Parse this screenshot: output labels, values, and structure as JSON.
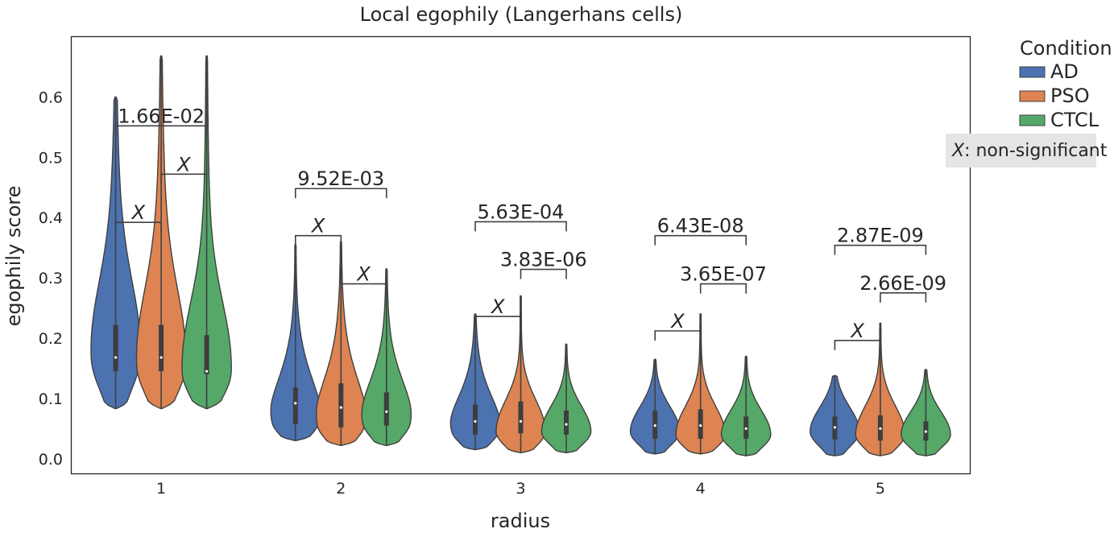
{
  "chart_data": {
    "type": "violin",
    "title": "Local egophily (Langerhans cells)",
    "xlabel": "radius",
    "ylabel": "egophily score",
    "categories": [
      "1",
      "2",
      "3",
      "4",
      "5"
    ],
    "ylim": [
      -0.025,
      0.7
    ],
    "yticks": [
      "0.0",
      "0.1",
      "0.2",
      "0.3",
      "0.4",
      "0.5",
      "0.6"
    ],
    "grid": false,
    "legend": {
      "title": "Condition",
      "placement": "outside-top-right",
      "entries": [
        {
          "name": "AD",
          "color": "#4c72b0"
        },
        {
          "name": "PSO",
          "color": "#dd8452"
        },
        {
          "name": "CTCL",
          "color": "#55a868"
        }
      ]
    },
    "note": {
      "symbol": "X",
      "text": ": non-significant"
    },
    "series": [
      {
        "name": "AD",
        "color": "#4c72b0",
        "violins": [
          {
            "min": 0.083,
            "max": 0.6,
            "q1": 0.145,
            "median": 0.168,
            "q3": 0.222,
            "modes": [
              [
                0.168,
                1.0
              ],
              [
                0.285,
                0.22
              ]
            ]
          },
          {
            "min": 0.03,
            "max": 0.355,
            "q1": 0.057,
            "median": 0.092,
            "q3": 0.118,
            "modes": [
              [
                0.06,
                1.0
              ],
              [
                0.1,
                0.6
              ]
            ]
          },
          {
            "min": 0.015,
            "max": 0.24,
            "q1": 0.04,
            "median": 0.062,
            "q3": 0.09,
            "modes": [
              [
                0.045,
                1.0
              ],
              [
                0.075,
                0.65
              ]
            ]
          },
          {
            "min": 0.008,
            "max": 0.165,
            "q1": 0.033,
            "median": 0.055,
            "q3": 0.08,
            "modes": [
              [
                0.045,
                1.0
              ]
            ]
          },
          {
            "min": 0.005,
            "max": 0.138,
            "q1": 0.032,
            "median": 0.052,
            "q3": 0.07,
            "modes": [
              [
                0.045,
                1.0
              ]
            ]
          }
        ]
      },
      {
        "name": "PSO",
        "color": "#dd8452",
        "violins": [
          {
            "min": 0.083,
            "max": 0.668,
            "q1": 0.145,
            "median": 0.168,
            "q3": 0.222,
            "modes": [
              [
                0.155,
                1.0
              ],
              [
                0.28,
                0.2
              ]
            ]
          },
          {
            "min": 0.022,
            "max": 0.36,
            "q1": 0.052,
            "median": 0.085,
            "q3": 0.125,
            "modes": [
              [
                0.055,
                1.0
              ],
              [
                0.1,
                0.55
              ]
            ]
          },
          {
            "min": 0.01,
            "max": 0.27,
            "q1": 0.042,
            "median": 0.062,
            "q3": 0.095,
            "modes": [
              [
                0.045,
                1.0
              ]
            ]
          },
          {
            "min": 0.008,
            "max": 0.24,
            "q1": 0.033,
            "median": 0.055,
            "q3": 0.082,
            "modes": [
              [
                0.04,
                1.0
              ]
            ]
          },
          {
            "min": 0.005,
            "max": 0.225,
            "q1": 0.03,
            "median": 0.05,
            "q3": 0.072,
            "modes": [
              [
                0.04,
                1.0
              ]
            ]
          }
        ]
      },
      {
        "name": "CTCL",
        "color": "#55a868",
        "violins": [
          {
            "min": 0.083,
            "max": 0.668,
            "q1": 0.14,
            "median": 0.145,
            "q3": 0.205,
            "modes": [
              [
                0.145,
                1.0
              ],
              [
                0.27,
                0.12
              ]
            ]
          },
          {
            "min": 0.022,
            "max": 0.315,
            "q1": 0.055,
            "median": 0.078,
            "q3": 0.11,
            "modes": [
              [
                0.06,
                1.0
              ],
              [
                0.095,
                0.45
              ]
            ]
          },
          {
            "min": 0.01,
            "max": 0.19,
            "q1": 0.04,
            "median": 0.057,
            "q3": 0.08,
            "modes": [
              [
                0.045,
                1.0
              ]
            ]
          },
          {
            "min": 0.005,
            "max": 0.17,
            "q1": 0.033,
            "median": 0.05,
            "q3": 0.07,
            "modes": [
              [
                0.04,
                1.0
              ]
            ]
          },
          {
            "min": 0.005,
            "max": 0.148,
            "q1": 0.03,
            "median": 0.045,
            "q3": 0.062,
            "modes": [
              [
                0.04,
                1.0
              ]
            ]
          }
        ]
      }
    ],
    "annotations": [
      {
        "category": "1",
        "pair": [
          "AD",
          "PSO"
        ],
        "label": "X",
        "italic": true,
        "y": 0.392
      },
      {
        "category": "1",
        "pair": [
          "PSO",
          "CTCL"
        ],
        "label": "X",
        "italic": true,
        "y": 0.472
      },
      {
        "category": "1",
        "pair": [
          "AD",
          "CTCL"
        ],
        "label": "1.66E-02",
        "italic": false,
        "y": 0.552
      },
      {
        "category": "2",
        "pair": [
          "AD",
          "PSO"
        ],
        "label": "X",
        "italic": true,
        "y": 0.37
      },
      {
        "category": "2",
        "pair": [
          "PSO",
          "CTCL"
        ],
        "label": "X",
        "italic": true,
        "y": 0.29
      },
      {
        "category": "2",
        "pair": [
          "AD",
          "CTCL"
        ],
        "label": "9.52E-03",
        "italic": false,
        "y": 0.448
      },
      {
        "category": "3",
        "pair": [
          "AD",
          "PSO"
        ],
        "label": "X",
        "italic": true,
        "y": 0.236
      },
      {
        "category": "3",
        "pair": [
          "PSO",
          "CTCL"
        ],
        "label": "3.83E-06",
        "italic": false,
        "y": 0.314
      },
      {
        "category": "3",
        "pair": [
          "AD",
          "CTCL"
        ],
        "label": "5.63E-04",
        "italic": false,
        "y": 0.393
      },
      {
        "category": "4",
        "pair": [
          "AD",
          "PSO"
        ],
        "label": "X",
        "italic": true,
        "y": 0.212
      },
      {
        "category": "4",
        "pair": [
          "PSO",
          "CTCL"
        ],
        "label": "3.65E-07",
        "italic": false,
        "y": 0.29
      },
      {
        "category": "4",
        "pair": [
          "AD",
          "CTCL"
        ],
        "label": "6.43E-08",
        "italic": false,
        "y": 0.37
      },
      {
        "category": "5",
        "pair": [
          "AD",
          "PSO"
        ],
        "label": "X",
        "italic": true,
        "y": 0.196
      },
      {
        "category": "5",
        "pair": [
          "PSO",
          "CTCL"
        ],
        "label": "2.66E-09",
        "italic": false,
        "y": 0.275
      },
      {
        "category": "5",
        "pair": [
          "AD",
          "CTCL"
        ],
        "label": "2.87E-09",
        "italic": false,
        "y": 0.354
      }
    ]
  }
}
